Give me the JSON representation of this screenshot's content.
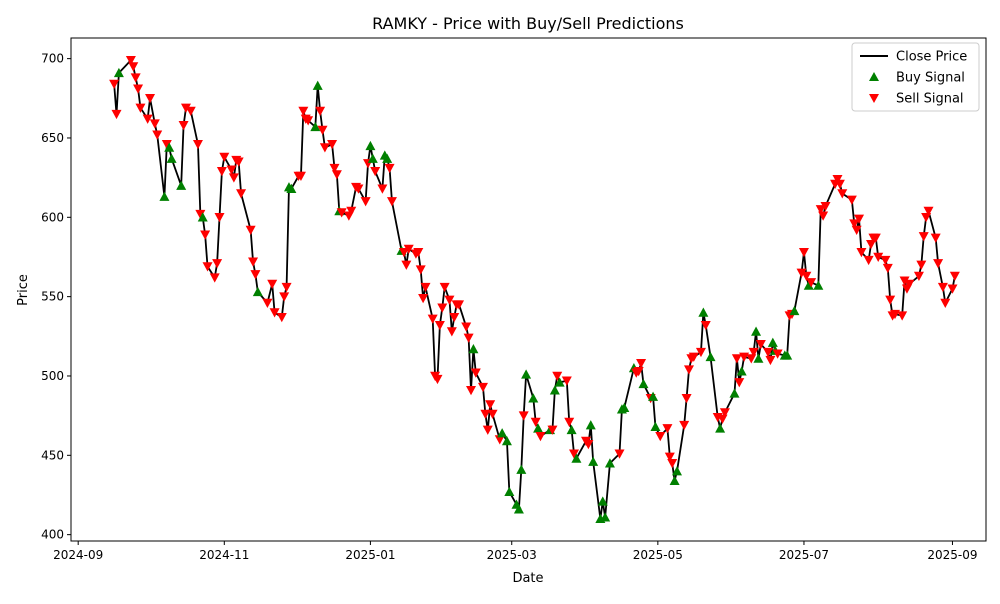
{
  "chart_data": {
    "type": "line",
    "title": "RAMKY - Price with Buy/Sell Predictions",
    "xlabel": "Date",
    "ylabel": "Price",
    "xlim": [
      "2024-08-29",
      "2025-09-15"
    ],
    "ylim": [
      396,
      713
    ],
    "x_ticks": [
      {
        "date": "2024-09-01",
        "label": "2024-09"
      },
      {
        "date": "2024-11-01",
        "label": "2024-11"
      },
      {
        "date": "2025-01-01",
        "label": "2025-01"
      },
      {
        "date": "2025-03-01",
        "label": "2025-03"
      },
      {
        "date": "2025-05-01",
        "label": "2025-05"
      },
      {
        "date": "2025-07-01",
        "label": "2025-07"
      },
      {
        "date": "2025-09-01",
        "label": "2025-09"
      }
    ],
    "y_ticks": [
      400,
      450,
      500,
      550,
      600,
      650,
      700
    ],
    "grid": false,
    "legend_position": "top-right",
    "series": [
      {
        "name": "Close Price",
        "kind": "line",
        "color": "#000000"
      },
      {
        "name": "Buy Signal",
        "kind": "marker",
        "marker": "triangle-up",
        "color": "#008000"
      },
      {
        "name": "Sell Signal",
        "kind": "marker",
        "marker": "triangle-down",
        "color": "#ff0000"
      }
    ],
    "points": [
      [
        "2024-09-16",
        684,
        "S"
      ],
      [
        "2024-09-17",
        665,
        "S"
      ],
      [
        "2024-09-18",
        691,
        "B"
      ],
      [
        "2024-09-23",
        699,
        "S"
      ],
      [
        "2024-09-24",
        695,
        "S"
      ],
      [
        "2024-09-25",
        688,
        "S"
      ],
      [
        "2024-09-26",
        681,
        "S"
      ],
      [
        "2024-09-27",
        669,
        "S"
      ],
      [
        "2024-09-30",
        662,
        "S"
      ],
      [
        "2024-10-01",
        675,
        "S"
      ],
      [
        "2024-10-03",
        659,
        "S"
      ],
      [
        "2024-10-04",
        652,
        "S"
      ],
      [
        "2024-10-07",
        613,
        "B"
      ],
      [
        "2024-10-08",
        646,
        "S"
      ],
      [
        "2024-10-09",
        644,
        "B"
      ],
      [
        "2024-10-10",
        637,
        "B"
      ],
      [
        "2024-10-14",
        620,
        "B"
      ],
      [
        "2024-10-15",
        658,
        "S"
      ],
      [
        "2024-10-16",
        669,
        "S"
      ],
      [
        "2024-10-18",
        667,
        "S"
      ],
      [
        "2024-10-21",
        646,
        "S"
      ],
      [
        "2024-10-22",
        602,
        "S"
      ],
      [
        "2024-10-23",
        600,
        "B"
      ],
      [
        "2024-10-24",
        589,
        "S"
      ],
      [
        "2024-10-25",
        569,
        "S"
      ],
      [
        "2024-10-28",
        562,
        "S"
      ],
      [
        "2024-10-29",
        571,
        "S"
      ],
      [
        "2024-10-30",
        600,
        "S"
      ],
      [
        "2024-10-31",
        629,
        "S"
      ],
      [
        "2024-11-01",
        638,
        "S"
      ],
      [
        "2024-11-04",
        630,
        "S"
      ],
      [
        "2024-11-05",
        625,
        "S"
      ],
      [
        "2024-11-06",
        636,
        "S"
      ],
      [
        "2024-11-07",
        635,
        "S"
      ],
      [
        "2024-11-08",
        615,
        "S"
      ],
      [
        "2024-11-12",
        592,
        "S"
      ],
      [
        "2024-11-13",
        572,
        "S"
      ],
      [
        "2024-11-14",
        564,
        "S"
      ],
      [
        "2024-11-15",
        553,
        "B"
      ],
      [
        "2024-11-19",
        546,
        "S"
      ],
      [
        "2024-11-21",
        558,
        "S"
      ],
      [
        "2024-11-22",
        540,
        "S"
      ],
      [
        "2024-11-25",
        537,
        "S"
      ],
      [
        "2024-11-26",
        550,
        "S"
      ],
      [
        "2024-11-27",
        556,
        "S"
      ],
      [
        "2024-11-28",
        619,
        "B"
      ],
      [
        "2024-11-29",
        618,
        "B"
      ],
      [
        "2024-12-02",
        626,
        "S"
      ],
      [
        "2024-12-03",
        626,
        "S"
      ],
      [
        "2024-12-04",
        667,
        "S"
      ],
      [
        "2024-12-05",
        662,
        "S"
      ],
      [
        "2024-12-06",
        661,
        "S"
      ],
      [
        "2024-12-09",
        657,
        "B"
      ],
      [
        "2024-12-10",
        683,
        "B"
      ],
      [
        "2024-12-11",
        667,
        "S"
      ],
      [
        "2024-12-12",
        655,
        "S"
      ],
      [
        "2024-12-13",
        644,
        "S"
      ],
      [
        "2024-12-16",
        646,
        "S"
      ],
      [
        "2024-12-17",
        631,
        "S"
      ],
      [
        "2024-12-18",
        627,
        "S"
      ],
      [
        "2024-12-19",
        604,
        "B"
      ],
      [
        "2024-12-20",
        603,
        "S"
      ],
      [
        "2024-12-23",
        601,
        "S"
      ],
      [
        "2024-12-24",
        604,
        "S"
      ],
      [
        "2024-12-26",
        619,
        "S"
      ],
      [
        "2024-12-27",
        618,
        "S"
      ],
      [
        "2024-12-30",
        610,
        "S"
      ],
      [
        "2024-12-31",
        634,
        "S"
      ],
      [
        "2025-01-01",
        645,
        "B"
      ],
      [
        "2025-01-02",
        637,
        "B"
      ],
      [
        "2025-01-03",
        629,
        "S"
      ],
      [
        "2025-01-06",
        618,
        "S"
      ],
      [
        "2025-01-07",
        639,
        "B"
      ],
      [
        "2025-01-08",
        637,
        "B"
      ],
      [
        "2025-01-09",
        631,
        "S"
      ],
      [
        "2025-01-10",
        610,
        "S"
      ],
      [
        "2025-01-14",
        579,
        "B"
      ],
      [
        "2025-01-15",
        578,
        "S"
      ],
      [
        "2025-01-16",
        570,
        "S"
      ],
      [
        "2025-01-17",
        580,
        "S"
      ],
      [
        "2025-01-20",
        577,
        "S"
      ],
      [
        "2025-01-21",
        578,
        "S"
      ],
      [
        "2025-01-22",
        567,
        "S"
      ],
      [
        "2025-01-23",
        549,
        "S"
      ],
      [
        "2025-01-24",
        556,
        "S"
      ],
      [
        "2025-01-27",
        536,
        "S"
      ],
      [
        "2025-01-28",
        500,
        "S"
      ],
      [
        "2025-01-29",
        498,
        "S"
      ],
      [
        "2025-01-30",
        532,
        "S"
      ],
      [
        "2025-01-31",
        543,
        "S"
      ],
      [
        "2025-02-01",
        556,
        "S"
      ],
      [
        "2025-02-03",
        548,
        "S"
      ],
      [
        "2025-02-04",
        528,
        "S"
      ],
      [
        "2025-02-05",
        537,
        "S"
      ],
      [
        "2025-02-06",
        545,
        "S"
      ],
      [
        "2025-02-07",
        545,
        "S"
      ],
      [
        "2025-02-10",
        531,
        "S"
      ],
      [
        "2025-02-11",
        524,
        "S"
      ],
      [
        "2025-02-12",
        491,
        "S"
      ],
      [
        "2025-02-13",
        517,
        "B"
      ],
      [
        "2025-02-14",
        502,
        "S"
      ],
      [
        "2025-02-17",
        493,
        "S"
      ],
      [
        "2025-02-18",
        476,
        "S"
      ],
      [
        "2025-02-19",
        466,
        "S"
      ],
      [
        "2025-02-20",
        482,
        "S"
      ],
      [
        "2025-02-21",
        476,
        "S"
      ],
      [
        "2025-02-24",
        460,
        "S"
      ],
      [
        "2025-02-25",
        464,
        "B"
      ],
      [
        "2025-02-27",
        459,
        "B"
      ],
      [
        "2025-02-28",
        427,
        "B"
      ],
      [
        "2025-03-03",
        419,
        "B"
      ],
      [
        "2025-03-04",
        416,
        "B"
      ],
      [
        "2025-03-05",
        441,
        "B"
      ],
      [
        "2025-03-06",
        475,
        "S"
      ],
      [
        "2025-03-07",
        501,
        "B"
      ],
      [
        "2025-03-10",
        486,
        "B"
      ],
      [
        "2025-03-11",
        471,
        "S"
      ],
      [
        "2025-03-12",
        467,
        "B"
      ],
      [
        "2025-03-13",
        462,
        "S"
      ],
      [
        "2025-03-17",
        466,
        "B"
      ],
      [
        "2025-03-18",
        466,
        "S"
      ],
      [
        "2025-03-19",
        491,
        "B"
      ],
      [
        "2025-03-20",
        500,
        "S"
      ],
      [
        "2025-03-21",
        496,
        "B"
      ],
      [
        "2025-03-24",
        497,
        "S"
      ],
      [
        "2025-03-25",
        471,
        "S"
      ],
      [
        "2025-03-26",
        466,
        "B"
      ],
      [
        "2025-03-27",
        451,
        "S"
      ],
      [
        "2025-03-28",
        448,
        "B"
      ],
      [
        "2025-04-01",
        459,
        "S"
      ],
      [
        "2025-04-02",
        457,
        "S"
      ],
      [
        "2025-04-03",
        469,
        "B"
      ],
      [
        "2025-04-04",
        446,
        "B"
      ],
      [
        "2025-04-07",
        410,
        "B"
      ],
      [
        "2025-04-08",
        421,
        "B"
      ],
      [
        "2025-04-09",
        411,
        "B"
      ],
      [
        "2025-04-11",
        445,
        "B"
      ],
      [
        "2025-04-15",
        451,
        "S"
      ],
      [
        "2025-04-16",
        479,
        "B"
      ],
      [
        "2025-04-17",
        480,
        "B"
      ],
      [
        "2025-04-21",
        505,
        "B"
      ],
      [
        "2025-04-22",
        502,
        "S"
      ],
      [
        "2025-04-23",
        503,
        "S"
      ],
      [
        "2025-04-24",
        508,
        "S"
      ],
      [
        "2025-04-25",
        495,
        "B"
      ],
      [
        "2025-04-28",
        486,
        "S"
      ],
      [
        "2025-04-29",
        487,
        "B"
      ],
      [
        "2025-04-30",
        468,
        "B"
      ],
      [
        "2025-05-02",
        462,
        "S"
      ],
      [
        "2025-05-05",
        467,
        "S"
      ],
      [
        "2025-05-06",
        449,
        "S"
      ],
      [
        "2025-05-07",
        445,
        "S"
      ],
      [
        "2025-05-08",
        434,
        "B"
      ],
      [
        "2025-05-09",
        440,
        "B"
      ],
      [
        "2025-05-12",
        469,
        "S"
      ],
      [
        "2025-05-13",
        486,
        "S"
      ],
      [
        "2025-05-14",
        504,
        "S"
      ],
      [
        "2025-05-15",
        511,
        "S"
      ],
      [
        "2025-05-16",
        512,
        "S"
      ],
      [
        "2025-05-19",
        515,
        "S"
      ],
      [
        "2025-05-20",
        540,
        "B"
      ],
      [
        "2025-05-21",
        532,
        "S"
      ],
      [
        "2025-05-23",
        512,
        "B"
      ],
      [
        "2025-05-26",
        474,
        "S"
      ],
      [
        "2025-05-27",
        467,
        "B"
      ],
      [
        "2025-05-28",
        473,
        "S"
      ],
      [
        "2025-05-29",
        477,
        "S"
      ],
      [
        "2025-06-02",
        489,
        "B"
      ],
      [
        "2025-06-03",
        511,
        "S"
      ],
      [
        "2025-06-04",
        496,
        "S"
      ],
      [
        "2025-06-05",
        503,
        "B"
      ],
      [
        "2025-06-06",
        512,
        "S"
      ],
      [
        "2025-06-09",
        511,
        "S"
      ],
      [
        "2025-06-10",
        515,
        "S"
      ],
      [
        "2025-06-11",
        528,
        "B"
      ],
      [
        "2025-06-12",
        511,
        "B"
      ],
      [
        "2025-06-13",
        520,
        "S"
      ],
      [
        "2025-06-16",
        515,
        "S"
      ],
      [
        "2025-06-17",
        510,
        "S"
      ],
      [
        "2025-06-18",
        521,
        "B"
      ],
      [
        "2025-06-19",
        516,
        "B"
      ],
      [
        "2025-06-20",
        514,
        "S"
      ],
      [
        "2025-06-23",
        513,
        "B"
      ],
      [
        "2025-06-24",
        513,
        "B"
      ],
      [
        "2025-06-25",
        538,
        "S"
      ],
      [
        "2025-06-26",
        539,
        "S"
      ],
      [
        "2025-06-27",
        541,
        "B"
      ],
      [
        "2025-06-30",
        565,
        "S"
      ],
      [
        "2025-07-01",
        578,
        "S"
      ],
      [
        "2025-07-02",
        563,
        "S"
      ],
      [
        "2025-07-03",
        557,
        "B"
      ],
      [
        "2025-07-04",
        559,
        "S"
      ],
      [
        "2025-07-07",
        557,
        "B"
      ],
      [
        "2025-07-08",
        605,
        "S"
      ],
      [
        "2025-07-09",
        601,
        "S"
      ],
      [
        "2025-07-10",
        607,
        "S"
      ],
      [
        "2025-07-14",
        621,
        "S"
      ],
      [
        "2025-07-15",
        624,
        "S"
      ],
      [
        "2025-07-16",
        621,
        "S"
      ],
      [
        "2025-07-17",
        615,
        "S"
      ],
      [
        "2025-07-21",
        611,
        "S"
      ],
      [
        "2025-07-22",
        596,
        "S"
      ],
      [
        "2025-07-23",
        592,
        "S"
      ],
      [
        "2025-07-24",
        599,
        "S"
      ],
      [
        "2025-07-25",
        578,
        "S"
      ],
      [
        "2025-07-28",
        573,
        "S"
      ],
      [
        "2025-07-29",
        583,
        "S"
      ],
      [
        "2025-07-30",
        587,
        "S"
      ],
      [
        "2025-07-31",
        587,
        "S"
      ],
      [
        "2025-08-01",
        575,
        "S"
      ],
      [
        "2025-08-04",
        573,
        "S"
      ],
      [
        "2025-08-05",
        568,
        "S"
      ],
      [
        "2025-08-06",
        548,
        "S"
      ],
      [
        "2025-08-07",
        538,
        "S"
      ],
      [
        "2025-08-08",
        539,
        "S"
      ],
      [
        "2025-08-11",
        538,
        "S"
      ],
      [
        "2025-08-12",
        560,
        "S"
      ],
      [
        "2025-08-13",
        555,
        "S"
      ],
      [
        "2025-08-14",
        558,
        "S"
      ],
      [
        "2025-08-18",
        563,
        "S"
      ],
      [
        "2025-08-19",
        570,
        "S"
      ],
      [
        "2025-08-20",
        588,
        "S"
      ],
      [
        "2025-08-21",
        600,
        "S"
      ],
      [
        "2025-08-22",
        604,
        "S"
      ],
      [
        "2025-08-25",
        587,
        "S"
      ],
      [
        "2025-08-26",
        571,
        "S"
      ],
      [
        "2025-08-28",
        556,
        "S"
      ],
      [
        "2025-08-29",
        546,
        "S"
      ],
      [
        "2025-09-01",
        555,
        "S"
      ],
      [
        "2025-09-02",
        563,
        "S"
      ]
    ]
  }
}
